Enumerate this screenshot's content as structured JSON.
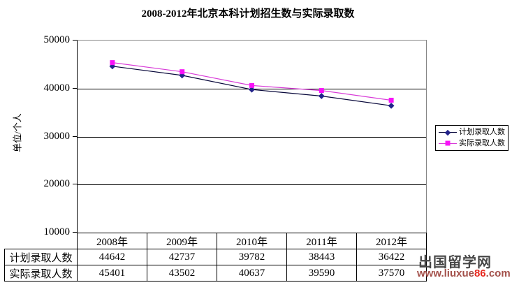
{
  "chart": {
    "title": "2008-2012年北京本科计划招生数与实际录取数",
    "y_axis_title": "单位/个人"
  },
  "watermark": {
    "site_name": "出国留学网",
    "url_prefix": "www.liuxue",
    "url_highlight": "86",
    "url_suffix": ".com"
  },
  "chart_data": {
    "type": "line",
    "title": "2008-2012年北京本科计划招生数与实际录取数",
    "ylabel": "单位/个人",
    "xlabel": "",
    "categories": [
      "2008年",
      "2009年",
      "2010年",
      "2011年",
      "2012年"
    ],
    "series": [
      {
        "key": "planned-admissions",
        "name": "计划录取人数",
        "values": [
          44642,
          42737,
          39782,
          38443,
          36422
        ],
        "line_color": "#07073a",
        "marker_color": "#22228a",
        "marker": "diamond"
      },
      {
        "key": "actual-admissions",
        "name": "实际录取人数",
        "values": [
          45401,
          43502,
          40637,
          39590,
          37570
        ],
        "line_color": "#d83cd8",
        "marker_color": "#f812f8",
        "marker": "square"
      }
    ],
    "ylim": [
      10000,
      50000
    ],
    "yticks": [
      50000,
      40000,
      30000,
      20000,
      10000
    ],
    "grid": true,
    "legend_position": "right",
    "data_table_shown": true
  }
}
